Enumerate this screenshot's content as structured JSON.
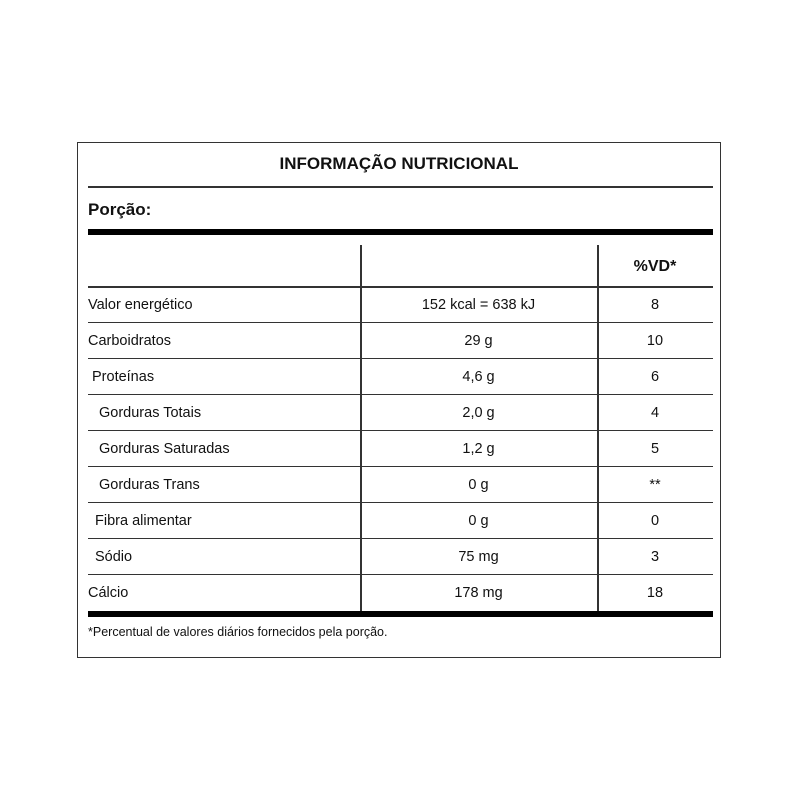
{
  "title": "INFORMAÇÃO NUTRICIONAL",
  "portion_label": "Porção:",
  "header": {
    "col1": "",
    "col2": "",
    "col3": "%VD*"
  },
  "rows": [
    {
      "name": "Valor energético",
      "amount": "152 kcal = 638 kJ",
      "vd": "8",
      "indent": 0
    },
    {
      "name": "Carboidratos",
      "amount": "29 g",
      "vd": "10",
      "indent": 0
    },
    {
      "name": "Proteínas",
      "amount": "4,6 g",
      "vd": "6",
      "indent": 1
    },
    {
      "name": "Gorduras Totais",
      "amount": "2,0 g",
      "vd": "4",
      "indent": 3
    },
    {
      "name": "Gorduras Saturadas",
      "amount": "1,2 g",
      "vd": "5",
      "indent": 3
    },
    {
      "name": "Gorduras Trans",
      "amount": "0 g",
      "vd": "**",
      "indent": 3
    },
    {
      "name": "Fibra alimentar",
      "amount": "0 g",
      "vd": "0",
      "indent": 2
    },
    {
      "name": "Sódio",
      "amount": "75 mg",
      "vd": "3",
      "indent": 2
    },
    {
      "name": "Cálcio",
      "amount": "178 mg",
      "vd": "18",
      "indent": 0
    }
  ],
  "footnote": "*Percentual de valores diários fornecidos pela porção."
}
